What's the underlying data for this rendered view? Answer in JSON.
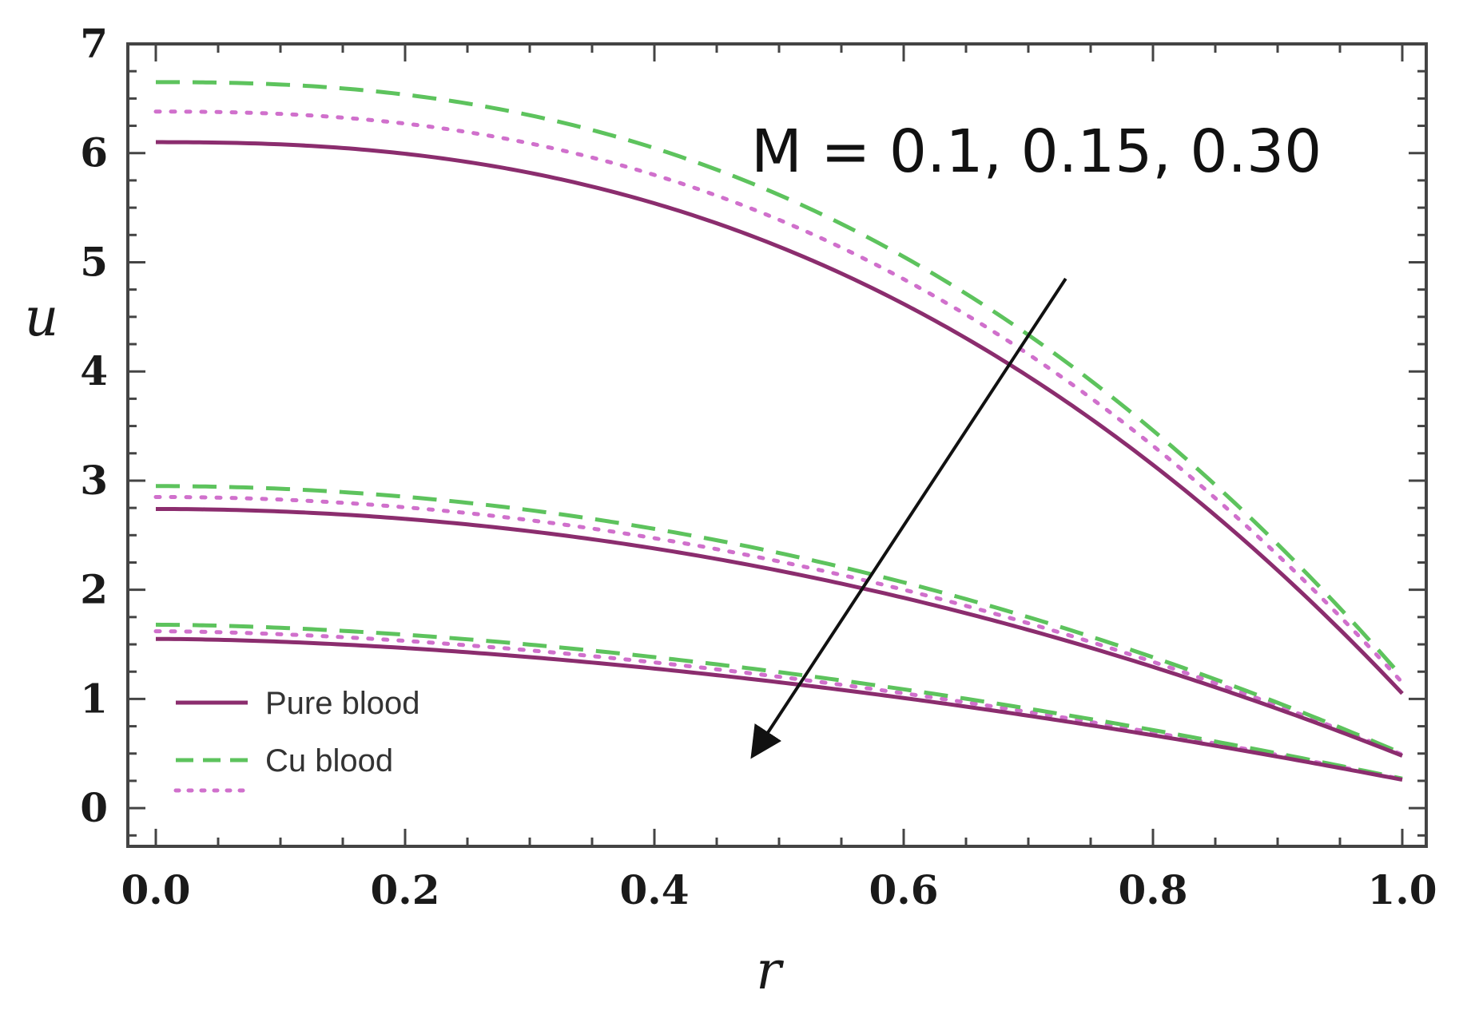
{
  "chart_data": {
    "type": "line",
    "title": "",
    "xlabel": "r",
    "ylabel": "u",
    "xlim": [
      0.0,
      1.0
    ],
    "ylim": [
      -0.35,
      7.0
    ],
    "x_ticks": [
      0.0,
      0.2,
      0.4,
      0.6,
      0.8,
      1.0
    ],
    "x_tick_labels": [
      "0.0",
      "0.2",
      "0.4",
      "0.6",
      "0.8",
      "1.0"
    ],
    "y_ticks": [
      0,
      1,
      2,
      3,
      4,
      5,
      6,
      7
    ],
    "y_tick_labels": [
      "0",
      "1",
      "2",
      "3",
      "4",
      "5",
      "6",
      "7"
    ],
    "grid": false,
    "legend_position": "bottom-left",
    "annotation": {
      "text": "M = 0.1, 0.15, 0.30",
      "arrow_from": [
        0.73,
        4.85
      ],
      "arrow_to": [
        0.48,
        0.5
      ]
    },
    "legend": [
      {
        "label": "Pure blood",
        "style": "solid",
        "color": "#8b2d6e"
      },
      {
        "label": "Cu blood",
        "style": "dashed",
        "color": "#5dc35d"
      },
      {
        "label": "",
        "style": "dotted",
        "color": "#d070cc"
      }
    ],
    "series": [
      {
        "group": "M=0.1",
        "style": "solid",
        "color": "#8b2d6e",
        "center": 6.1,
        "wall": 1.05,
        "exponent": 2.4
      },
      {
        "group": "M=0.1",
        "style": "dashed",
        "color": "#5dc35d",
        "center": 6.65,
        "wall": 1.2,
        "exponent": 2.4
      },
      {
        "group": "M=0.1",
        "style": "dotted",
        "color": "#d070cc",
        "center": 6.38,
        "wall": 1.15,
        "exponent": 2.4
      },
      {
        "group": "M=0.15",
        "style": "solid",
        "color": "#8b2d6e",
        "center": 2.74,
        "wall": 0.48,
        "exponent": 2.0
      },
      {
        "group": "M=0.15",
        "style": "dashed",
        "color": "#5dc35d",
        "center": 2.95,
        "wall": 0.5,
        "exponent": 2.0
      },
      {
        "group": "M=0.15",
        "style": "dotted",
        "color": "#d070cc",
        "center": 2.85,
        "wall": 0.49,
        "exponent": 2.0
      },
      {
        "group": "M=0.30",
        "style": "solid",
        "color": "#8b2d6e",
        "center": 1.55,
        "wall": 0.26,
        "exponent": 1.7
      },
      {
        "group": "M=0.30",
        "style": "dashed",
        "color": "#5dc35d",
        "center": 1.68,
        "wall": 0.27,
        "exponent": 1.7
      },
      {
        "group": "M=0.30",
        "style": "dotted",
        "color": "#d070cc",
        "center": 1.62,
        "wall": 0.265,
        "exponent": 1.7
      }
    ]
  }
}
